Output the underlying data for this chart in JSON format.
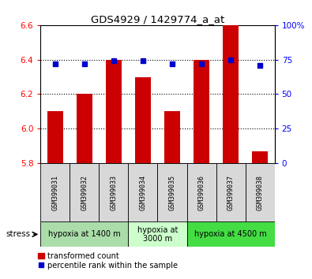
{
  "title": "GDS4929 / 1429774_a_at",
  "samples": [
    "GSM399031",
    "GSM399032",
    "GSM399033",
    "GSM399034",
    "GSM399035",
    "GSM399036",
    "GSM399037",
    "GSM399038"
  ],
  "bar_values": [
    6.1,
    6.2,
    6.4,
    6.3,
    6.1,
    6.4,
    6.6,
    5.87
  ],
  "dot_values": [
    72,
    72,
    74,
    74,
    72,
    72,
    75,
    71
  ],
  "bar_color": "#cc0000",
  "dot_color": "#0000cc",
  "ylim": [
    5.8,
    6.6
  ],
  "y2lim": [
    0,
    100
  ],
  "yticks": [
    5.8,
    6.0,
    6.2,
    6.4,
    6.6
  ],
  "y2ticks": [
    0,
    25,
    50,
    75,
    100
  ],
  "y2ticklabels": [
    "0",
    "25",
    "50",
    "75",
    "100%"
  ],
  "groups": [
    {
      "label": "hypoxia at 1400 m",
      "start": 0,
      "end": 2,
      "color": "#bbeeaa"
    },
    {
      "label": "hypoxia at\n3000 m",
      "start": 3,
      "end": 4,
      "color": "#ccffcc"
    },
    {
      "label": "hypoxia at 4500 m",
      "start": 5,
      "end": 7,
      "color": "#44ee44"
    }
  ],
  "bar_bottom": 5.8,
  "bar_width": 0.55,
  "legend_red_label": "transformed count",
  "legend_blue_label": "percentile rank within the sample",
  "bg_color": "#d8d8d8",
  "group_colors": [
    "#bbeeaa",
    "#ccffcc",
    "#44ee44"
  ]
}
